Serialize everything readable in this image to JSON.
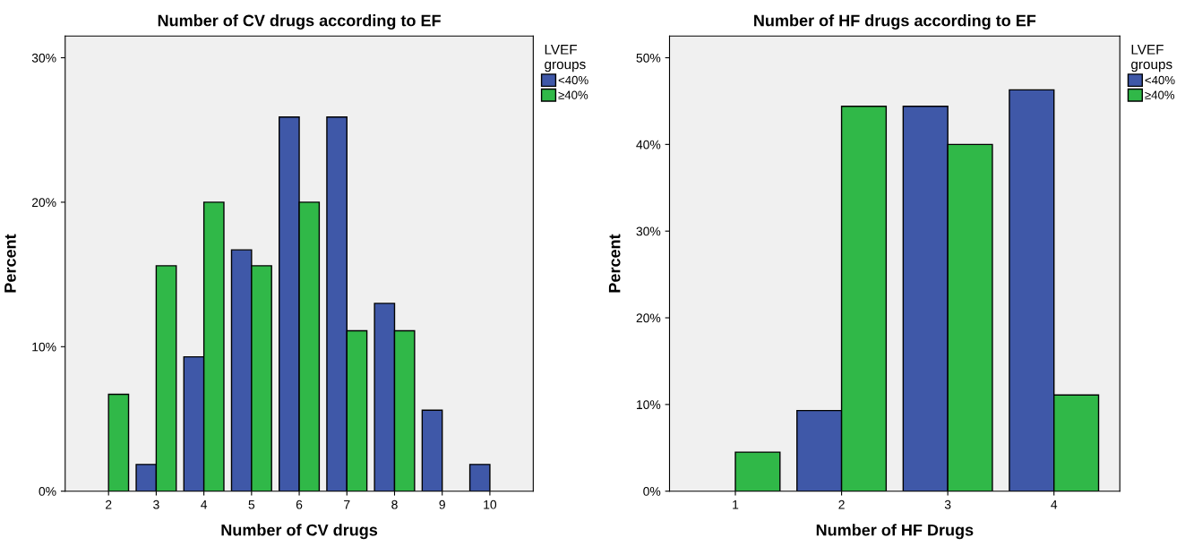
{
  "chart_data": [
    {
      "type": "bar",
      "title": "Number of CV drugs according to EF",
      "xlabel": "Number of CV drugs",
      "ylabel": "Percent",
      "legend_title": "LVEF\ngroups",
      "legend": "top right",
      "grid": false,
      "categories": [
        "2",
        "3",
        "4",
        "5",
        "6",
        "7",
        "8",
        "9",
        "10"
      ],
      "series": [
        {
          "name": "<40%",
          "color": "#3f58a8",
          "values": [
            null,
            1.85,
            9.3,
            16.7,
            25.9,
            25.9,
            13.0,
            5.6,
            1.85
          ]
        },
        {
          "name": "≥40%",
          "color": "#30b848",
          "values": [
            6.7,
            15.6,
            20.0,
            15.6,
            20.0,
            11.1,
            11.1,
            null,
            null
          ]
        }
      ],
      "ylim": [
        0,
        31.5
      ],
      "yticks": [
        {
          "value": 0,
          "label": "0%"
        },
        {
          "value": 10,
          "label": "10%"
        },
        {
          "value": 20,
          "label": "20%"
        },
        {
          "value": 30,
          "label": "30%"
        }
      ]
    },
    {
      "type": "bar",
      "title": "Number of HF drugs according to EF",
      "xlabel": "Number of HF Drugs",
      "ylabel": "Percent",
      "legend_title": "LVEF\ngroups",
      "legend": "top right",
      "grid": false,
      "categories": [
        "1",
        "2",
        "3",
        "4"
      ],
      "series": [
        {
          "name": "<40%",
          "color": "#3f58a8",
          "values": [
            null,
            9.3,
            44.4,
            46.3
          ]
        },
        {
          "name": "≥40%",
          "color": "#30b848",
          "values": [
            4.5,
            44.4,
            40.0,
            11.1
          ]
        }
      ],
      "ylim": [
        0,
        52.5
      ],
      "yticks": [
        {
          "value": 0,
          "label": "0%"
        },
        {
          "value": 10,
          "label": "10%"
        },
        {
          "value": 20,
          "label": "20%"
        },
        {
          "value": 30,
          "label": "30%"
        },
        {
          "value": 40,
          "label": "40%"
        },
        {
          "value": 50,
          "label": "50%"
        }
      ]
    }
  ]
}
